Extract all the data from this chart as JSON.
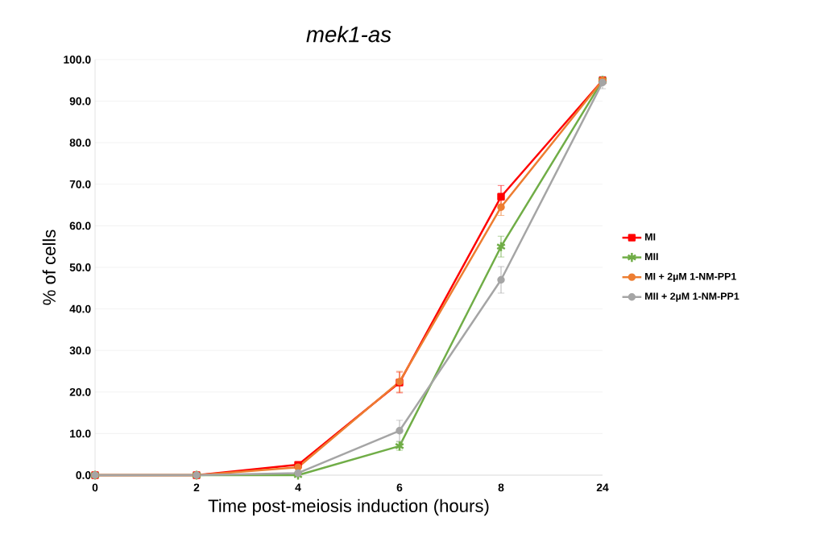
{
  "chart_data": {
    "type": "line",
    "title": "*mek1-as*",
    "xlabel": "Time post-meiosis induction (hours)",
    "ylabel": "% of cells",
    "categories": [
      "0",
      "2",
      "4",
      "6",
      "8",
      "24"
    ],
    "ylim": [
      0,
      100
    ],
    "yticks": [
      {
        "value": 0,
        "label": "0.0"
      },
      {
        "value": 10,
        "label": "10.0"
      },
      {
        "value": 20,
        "label": "20.0"
      },
      {
        "value": 30,
        "label": "30.0"
      },
      {
        "value": 40,
        "label": "40.0"
      },
      {
        "value": 50,
        "label": "50.0"
      },
      {
        "value": 60,
        "label": "60.0"
      },
      {
        "value": 70,
        "label": "70.0"
      },
      {
        "value": 80,
        "label": "80.0"
      },
      {
        "value": 90,
        "label": "90.0"
      },
      {
        "value": 100,
        "label": "100.0"
      }
    ],
    "grid": "y",
    "legend": "right",
    "series": [
      {
        "name": "MI",
        "color": "#ff0000",
        "marker": "square",
        "values": [
          0,
          0,
          2.5,
          22.3,
          67,
          95
        ],
        "errors": [
          null,
          null,
          null,
          2.5,
          2.7,
          null
        ]
      },
      {
        "name": "MII",
        "color": "#70ad47",
        "marker": "cross",
        "values": [
          0,
          0,
          0,
          7,
          55,
          95
        ],
        "errors": [
          null,
          null,
          null,
          1,
          2.5,
          null
        ]
      },
      {
        "name": "MI + 2µM 1-NM-PP1",
        "color": "#ed7d31",
        "marker": "circle",
        "values": [
          0,
          0,
          1.9,
          22.5,
          64.5,
          95
        ],
        "errors": [
          null,
          null,
          null,
          2.5,
          2,
          null
        ]
      },
      {
        "name": "MII + 2µM 1-NM-PP1",
        "color": "#a5a5a5",
        "marker": "circle",
        "values": [
          0,
          0,
          0.5,
          10.7,
          47,
          94.5
        ],
        "errors": [
          null,
          null,
          null,
          2.5,
          3.2,
          1.5
        ]
      }
    ]
  }
}
